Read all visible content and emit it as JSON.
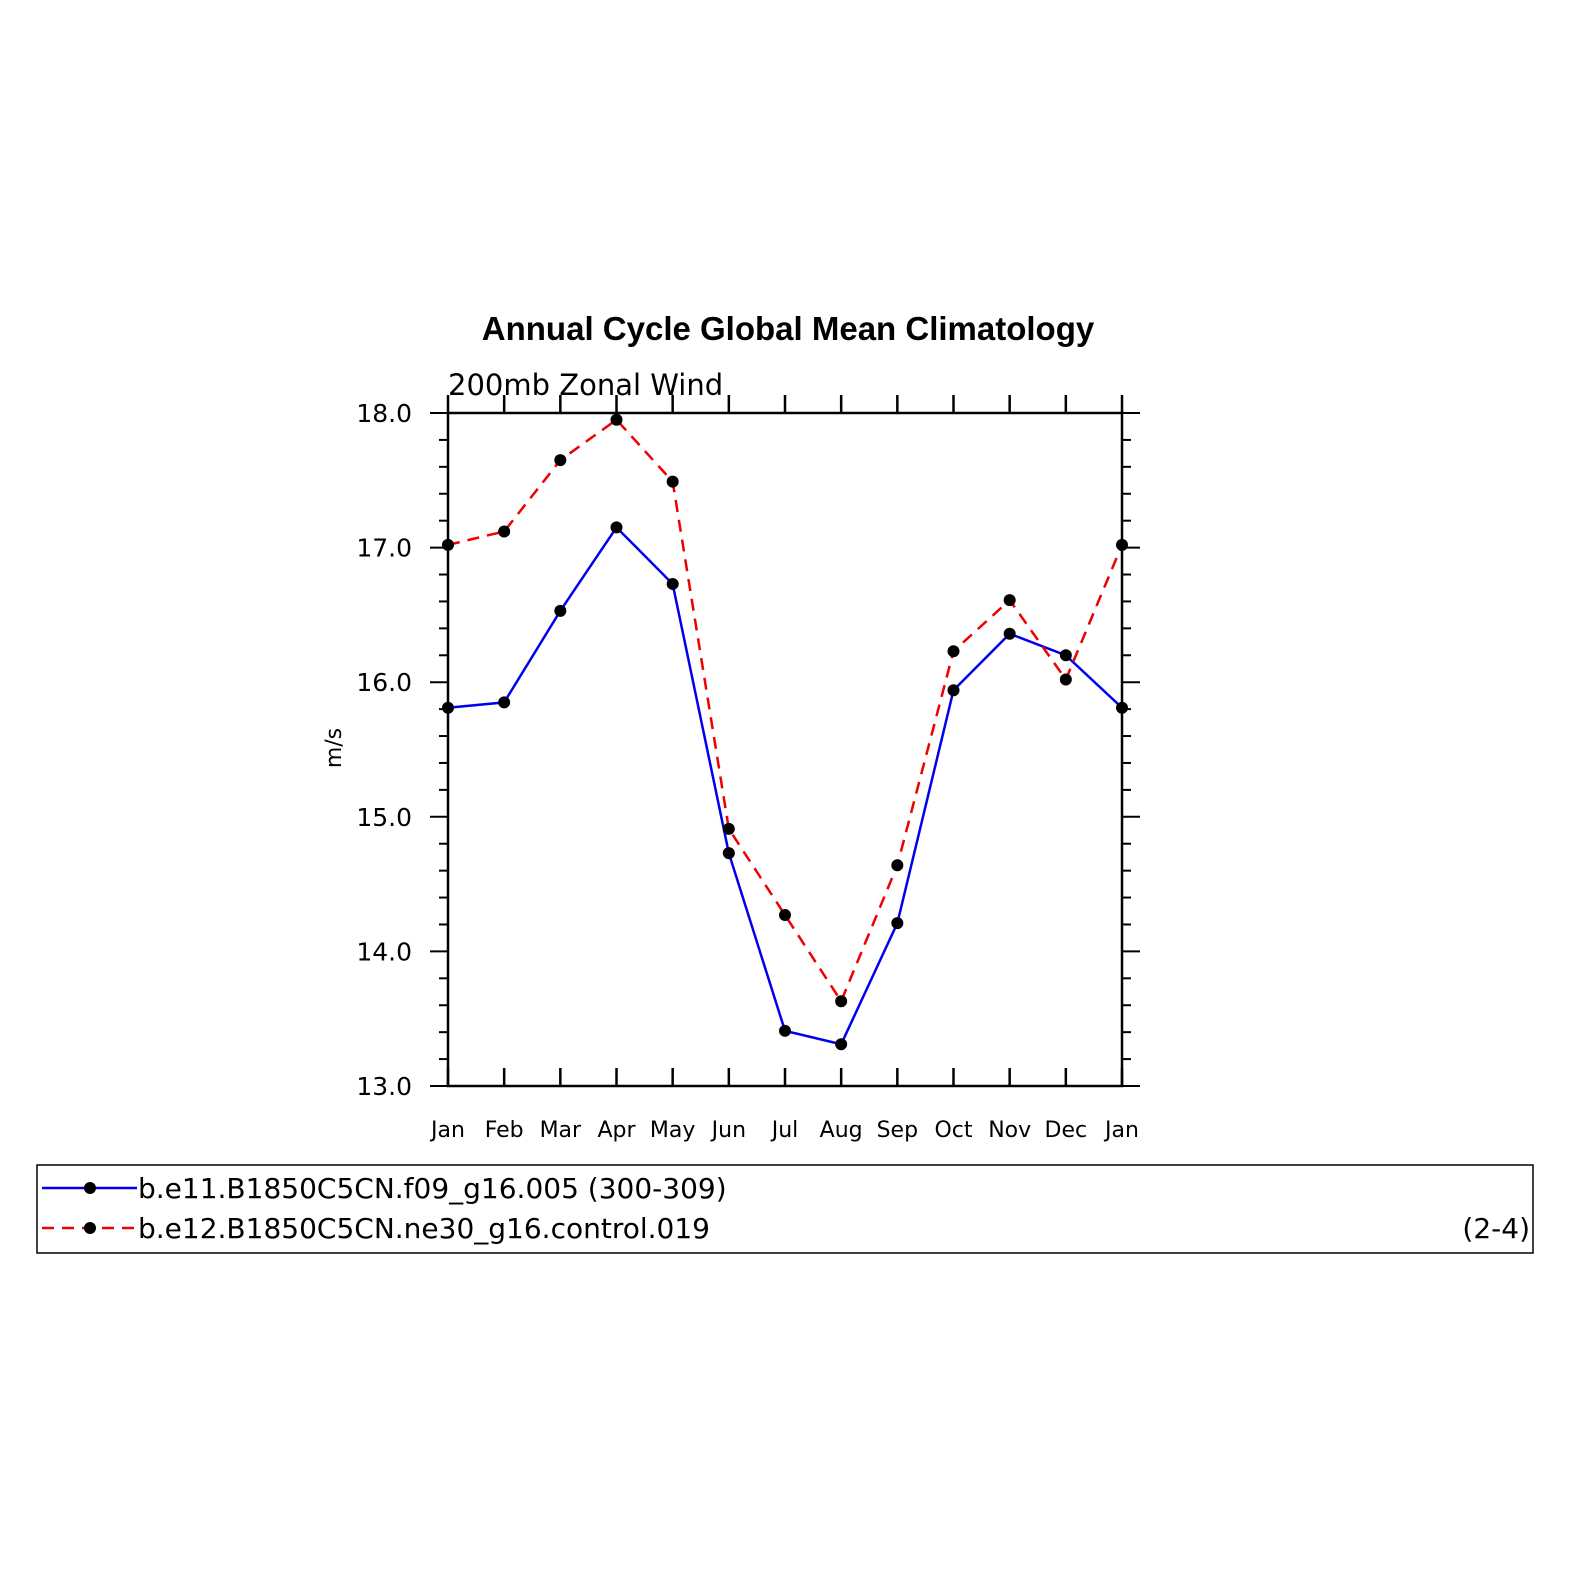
{
  "chart_data": {
    "type": "line",
    "title": "Annual Cycle Global Mean Climatology",
    "subtitle": "200mb Zonal Wind",
    "ylabel": "m/s",
    "xlabel": "",
    "ylim": [
      13.0,
      18.0
    ],
    "yticks": [
      "13.0",
      "14.0",
      "15.0",
      "16.0",
      "17.0",
      "18.0"
    ],
    "categories": [
      "Jan",
      "Feb",
      "Mar",
      "Apr",
      "May",
      "Jun",
      "Jul",
      "Aug",
      "Sep",
      "Oct",
      "Nov",
      "Dec",
      "Jan"
    ],
    "grid": false,
    "legend_position": "bottom",
    "series": [
      {
        "name": "b.e11.B1850C5CN.f09_g16.005 (300-309)",
        "color": "#0000ee",
        "dash": "solid",
        "values": [
          15.81,
          15.85,
          16.53,
          17.15,
          16.73,
          14.73,
          13.41,
          13.31,
          14.21,
          15.94,
          16.36,
          16.2,
          15.81
        ]
      },
      {
        "name": "b.e12.B1850C5CN.ne30_g16.control.019",
        "color": "#ee0000",
        "dash": "dashed",
        "values": [
          17.02,
          17.12,
          17.65,
          17.95,
          17.49,
          14.91,
          14.27,
          13.63,
          14.64,
          16.23,
          16.61,
          16.02,
          17.02
        ]
      }
    ],
    "annotation": "(2-4)"
  }
}
